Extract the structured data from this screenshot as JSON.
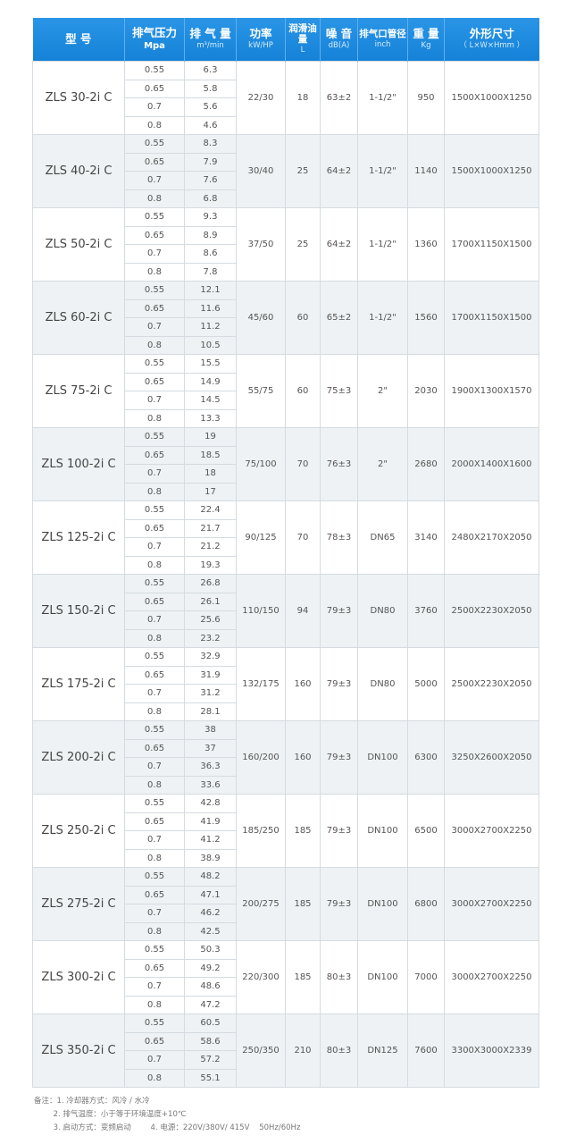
{
  "header": {
    "model": "型 号",
    "pressure": {
      "t": "排气压力",
      "s": "Mpa"
    },
    "flow": {
      "t": "排 气 量",
      "s": "m³/min"
    },
    "power": {
      "t": "功率",
      "s": "kW/HP"
    },
    "oil": {
      "t": "润滑油量",
      "s": "L"
    },
    "noise": {
      "t": "噪 音",
      "s": "dB(A)"
    },
    "pipe": {
      "t": "排气口管径",
      "s": "inch"
    },
    "weight": {
      "t": "重 量",
      "s": "Kg"
    },
    "dims": {
      "t": "外形尺寸",
      "s": "（ L×W×Hmm ）"
    }
  },
  "pressures": [
    "0.55",
    "0.65",
    "0.7",
    "0.8"
  ],
  "rows": [
    {
      "model": "ZLS 30-2i C",
      "flow": [
        "6.3",
        "5.8",
        "5.6",
        "4.6"
      ],
      "power": "22/30",
      "oil": "18",
      "noise": "63±2",
      "pipe": "1-1/2\"",
      "weight": "950",
      "dims": "1500X1000X1250"
    },
    {
      "model": "ZLS 40-2i C",
      "flow": [
        "8.3",
        "7.9",
        "7.6",
        "6.8"
      ],
      "power": "30/40",
      "oil": "25",
      "noise": "64±2",
      "pipe": "1-1/2\"",
      "weight": "1140",
      "dims": "1500X1000X1250"
    },
    {
      "model": "ZLS 50-2i C",
      "flow": [
        "9.3",
        "8.9",
        "8.6",
        "7.8"
      ],
      "power": "37/50",
      "oil": "25",
      "noise": "64±2",
      "pipe": "1-1/2\"",
      "weight": "1360",
      "dims": "1700X1150X1500"
    },
    {
      "model": "ZLS 60-2i C",
      "flow": [
        "12.1",
        "11.6",
        "11.2",
        "10.5"
      ],
      "power": "45/60",
      "oil": "60",
      "noise": "65±2",
      "pipe": "1-1/2\"",
      "weight": "1560",
      "dims": "1700X1150X1500"
    },
    {
      "model": "ZLS 75-2i C",
      "flow": [
        "15.5",
        "14.9",
        "14.5",
        "13.3"
      ],
      "power": "55/75",
      "oil": "60",
      "noise": "75±3",
      "pipe": "2\"",
      "weight": "2030",
      "dims": "1900X1300X1570"
    },
    {
      "model": "ZLS 100-2i C",
      "flow": [
        "19",
        "18.5",
        "18",
        "17"
      ],
      "power": "75/100",
      "oil": "70",
      "noise": "76±3",
      "pipe": "2\"",
      "weight": "2680",
      "dims": "2000X1400X1600"
    },
    {
      "model": "ZLS 125-2i C",
      "flow": [
        "22.4",
        "21.7",
        "21.2",
        "19.3"
      ],
      "power": "90/125",
      "oil": "70",
      "noise": "78±3",
      "pipe": "DN65",
      "weight": "3140",
      "dims": "2480X2170X2050"
    },
    {
      "model": "ZLS 150-2i C",
      "flow": [
        "26.8",
        "26.1",
        "25.6",
        "23.2"
      ],
      "power": "110/150",
      "oil": "94",
      "noise": "79±3",
      "pipe": "DN80",
      "weight": "3760",
      "dims": "2500X2230X2050"
    },
    {
      "model": "ZLS 175-2i C",
      "flow": [
        "32.9",
        "31.9",
        "31.2",
        "28.1"
      ],
      "power": "132/175",
      "oil": "160",
      "noise": "79±3",
      "pipe": "DN80",
      "weight": "5000",
      "dims": "2500X2230X2050"
    },
    {
      "model": "ZLS 200-2i C",
      "flow": [
        "38",
        "37",
        "36.3",
        "33.6"
      ],
      "power": "160/200",
      "oil": "160",
      "noise": "79±3",
      "pipe": "DN100",
      "weight": "6300",
      "dims": "3250X2600X2050"
    },
    {
      "model": "ZLS 250-2i C",
      "flow": [
        "42.8",
        "41.9",
        "41.2",
        "38.9"
      ],
      "power": "185/250",
      "oil": "185",
      "noise": "79±3",
      "pipe": "DN100",
      "weight": "6500",
      "dims": "3000X2700X2250"
    },
    {
      "model": "ZLS 275-2i C",
      "flow": [
        "48.2",
        "47.1",
        "46.2",
        "42.5"
      ],
      "power": "200/275",
      "oil": "185",
      "noise": "79±3",
      "pipe": "DN100",
      "weight": "6800",
      "dims": "3000X2700X2250"
    },
    {
      "model": "ZLS 300-2i C",
      "flow": [
        "50.3",
        "49.2",
        "48.6",
        "47.2"
      ],
      "power": "220/300",
      "oil": "185",
      "noise": "80±3",
      "pipe": "DN100",
      "weight": "7000",
      "dims": "3000X2700X2250"
    },
    {
      "model": "ZLS 350-2i C",
      "flow": [
        "60.5",
        "58.6",
        "57.2",
        "55.1"
      ],
      "power": "250/350",
      "oil": "210",
      "noise": "80±3",
      "pipe": "DN125",
      "weight": "7600",
      "dims": "3300X3000X2339"
    }
  ],
  "notes": [
    "备注：1. 冷却器方式：风冷 / 水冷",
    "        2. 排气温度：小于等于环境温度+10℃",
    "        3. 启动方式：变频启动        4. 电源：220V/380V/ 415V    50Hz/60Hz"
  ]
}
